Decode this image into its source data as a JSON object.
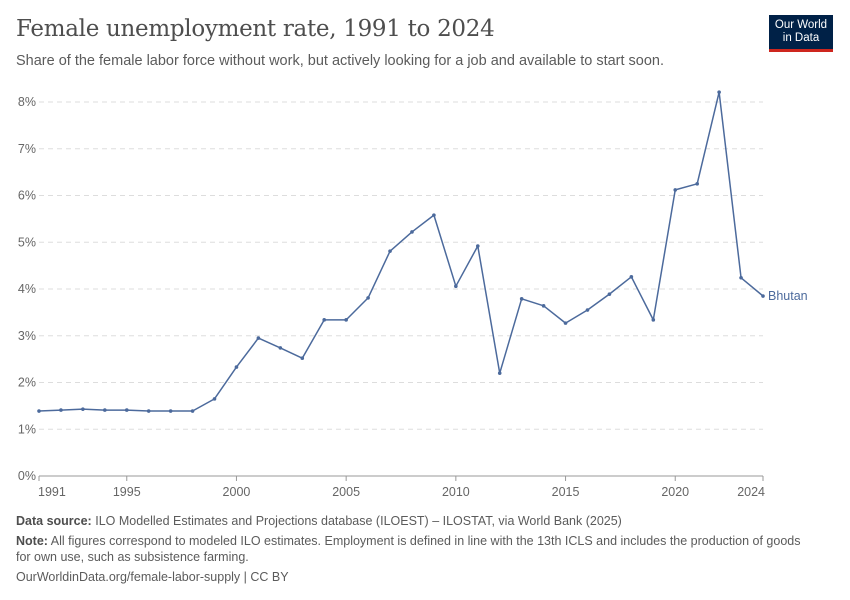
{
  "header": {
    "title": "Female unemployment rate, 1991 to 2024",
    "subtitle": "Share of the female labor force without work, but actively looking for a job and available to start soon.",
    "logo_text": "Our World in Data"
  },
  "footer": {
    "source_label": "Data source:",
    "source": "ILO Modelled Estimates and Projections database (ILOEST) – ILOSTAT, via World Bank (2025)",
    "note_label": "Note:",
    "note": "All figures correspond to modeled ILO estimates. Employment is defined in line with the 13th ICLS and includes the production of goods for own use, such as subsistence farming.",
    "url": "OurWorldinData.org/female-labor-supply | CC BY"
  },
  "chart_data": {
    "type": "line",
    "title": "Female unemployment rate, 1991 to 2024",
    "xlabel": "",
    "ylabel": "",
    "xlim": [
      1991,
      2024
    ],
    "ylim": [
      0,
      8
    ],
    "grid": true,
    "x_ticks": [
      1991,
      1995,
      2000,
      2005,
      2010,
      2015,
      2020,
      2024
    ],
    "y_ticks": [
      0,
      1,
      2,
      3,
      4,
      5,
      6,
      7,
      8
    ],
    "y_tick_labels": [
      "0%",
      "1%",
      "2%",
      "3%",
      "4%",
      "5%",
      "6%",
      "7%",
      "8%"
    ],
    "color": "#4c6a9c",
    "series": [
      {
        "name": "Bhutan",
        "x": [
          1991,
          1992,
          1993,
          1994,
          1995,
          1996,
          1997,
          1998,
          1999,
          2000,
          2001,
          2002,
          2003,
          2004,
          2005,
          2006,
          2007,
          2008,
          2009,
          2010,
          2011,
          2012,
          2013,
          2014,
          2015,
          2016,
          2017,
          2018,
          2019,
          2020,
          2021,
          2022,
          2023,
          2024
        ],
        "values": [
          1.39,
          1.41,
          1.43,
          1.41,
          1.41,
          1.39,
          1.39,
          1.39,
          1.65,
          2.33,
          2.95,
          2.74,
          2.52,
          3.34,
          3.34,
          3.81,
          4.81,
          5.22,
          5.58,
          4.06,
          4.92,
          2.2,
          3.79,
          3.64,
          3.27,
          3.55,
          3.89,
          4.26,
          3.34,
          6.12,
          6.25,
          8.21,
          4.24,
          3.85
        ]
      }
    ]
  }
}
